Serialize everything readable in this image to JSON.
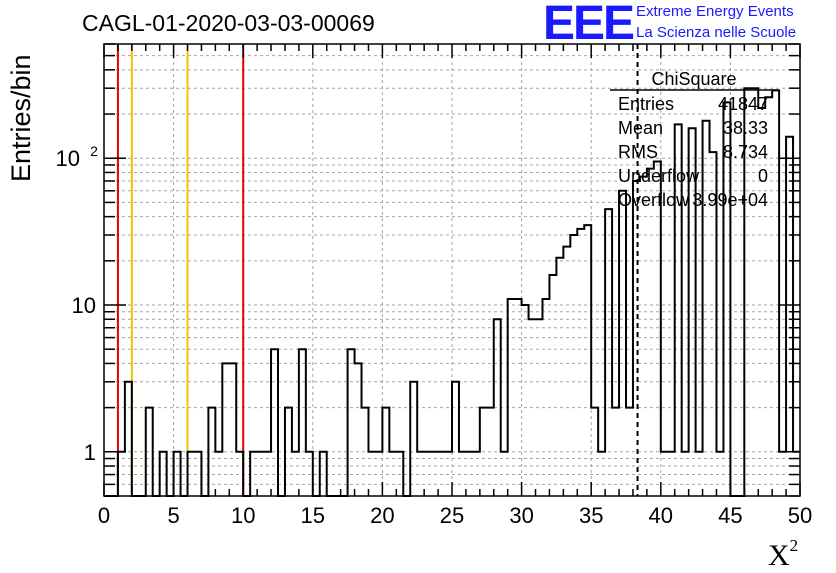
{
  "header": {
    "title": "CAGL-01-2020-03-03-00069",
    "logo_text": "EEE",
    "logo_line1": "Extreme Energy Events",
    "logo_line2": "La Scienza nelle Scuole"
  },
  "colors": {
    "histogram": "#000000",
    "grid": "#a6a6a6",
    "red_lines": "#e60000",
    "yellow_lines": "#f2c200",
    "logo": "#1a1aff"
  },
  "stats_box": {
    "name": "ChiSquare",
    "rows": [
      {
        "label": "Entries",
        "value": "41847"
      },
      {
        "label": "Mean",
        "value": "38.33"
      },
      {
        "label": "RMS",
        "value": "8.734"
      },
      {
        "label": "Underflow",
        "value": "0"
      },
      {
        "label": "Overflow",
        "value": "3.99e+04"
      }
    ]
  },
  "chart_data": {
    "type": "histogram",
    "title": "CAGL-01-2020-03-03-00069",
    "xlabel_base": "X",
    "xlabel_sup": "2",
    "ylabel": "Entries/bin",
    "xlim": [
      0,
      50
    ],
    "ylim": [
      0.5,
      600
    ],
    "yscale": "log",
    "bin_width": 0.5,
    "x_ticks": [
      0,
      5,
      10,
      15,
      20,
      25,
      30,
      35,
      40,
      45,
      50
    ],
    "y_ticks": [
      {
        "value": 1,
        "label": "1"
      },
      {
        "value": 10,
        "label": "10"
      },
      {
        "value": 100,
        "label": "10",
        "sup": "2"
      }
    ],
    "grid": true,
    "vertical_markers": [
      {
        "x": 1,
        "color": "red"
      },
      {
        "x": 10,
        "color": "red"
      },
      {
        "x": 2,
        "color": "yellow"
      },
      {
        "x": 6,
        "color": "yellow"
      }
    ],
    "mean_line_x": 38.33,
    "bin_values": [
      0,
      0,
      1,
      3,
      0,
      0,
      2,
      0,
      1,
      0,
      1,
      0,
      1,
      1,
      0,
      2,
      1,
      4,
      4,
      1,
      0,
      1,
      1,
      1,
      5,
      0,
      2,
      1,
      5,
      1,
      0,
      1,
      0,
      0,
      0,
      5,
      4,
      2,
      1,
      1,
      2,
      1,
      1,
      0,
      3,
      1,
      1,
      1,
      1,
      1,
      3,
      1,
      1,
      1,
      2,
      2,
      8,
      1,
      11,
      11,
      10,
      8,
      8,
      11,
      16,
      21,
      25,
      30,
      33,
      35,
      2,
      1,
      45,
      2,
      60,
      2,
      70,
      75,
      85,
      95,
      1,
      1,
      170,
      1,
      160,
      1,
      180,
      110,
      1,
      240,
      0,
      0,
      300,
      300,
      220,
      260,
      290,
      1,
      140,
      1
    ]
  }
}
